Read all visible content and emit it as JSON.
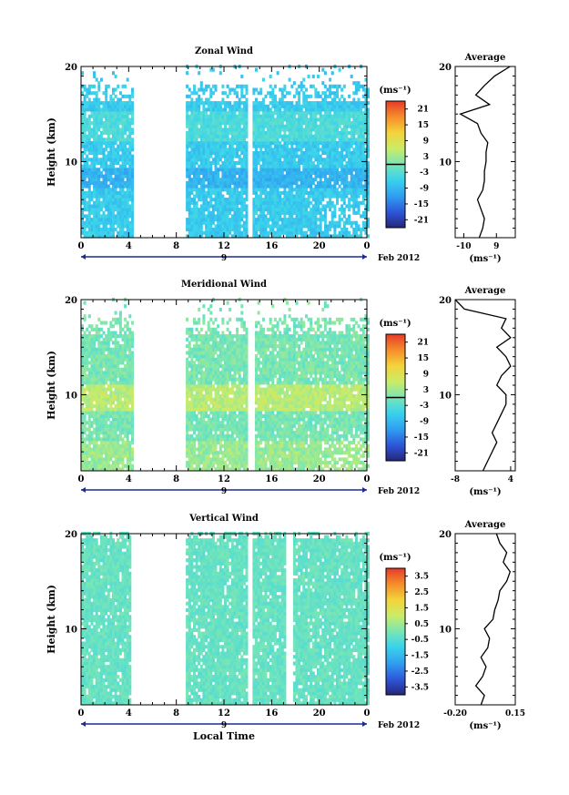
{
  "chart_data": [
    {
      "type": "heatmap",
      "title": "Zonal Wind",
      "ylabel": "Height (km)",
      "y_ticks": [
        "10",
        "20"
      ],
      "ylim": [
        2,
        20
      ],
      "x_ticks": [
        "0",
        "4",
        "8",
        "12",
        "16",
        "20",
        "0"
      ],
      "xlim": [
        0,
        24
      ],
      "date_label": "9",
      "month_label": "Feb 2012",
      "colorbar": {
        "unit_label": "(ms⁻¹)",
        "ticks": [
          "21",
          "15",
          "9",
          "3",
          "-3",
          "-9",
          "-15",
          "-21"
        ],
        "range": [
          -24,
          24
        ],
        "zero_line": true
      },
      "data_gaps_hours": [
        [
          4.5,
          8.8
        ],
        [
          14.0,
          14.3
        ]
      ],
      "average_profile": {
        "title": "Average",
        "x_ticks": [
          "-10",
          "9"
        ],
        "x_tick_values": [
          -10,
          9
        ],
        "xlim": [
          -15,
          20
        ],
        "xlabel": "(ms⁻¹)",
        "y_ticks": [
          "10",
          "20"
        ],
        "height_km": [
          2,
          3,
          4,
          5,
          6,
          7,
          8,
          9,
          10,
          11,
          12,
          13,
          14,
          15,
          16,
          17,
          18,
          19,
          20
        ],
        "values": [
          -1,
          1,
          2,
          0,
          -2,
          1,
          2,
          2,
          3,
          3,
          4,
          0,
          -2,
          -12,
          5,
          -3,
          2,
          8,
          17
        ]
      }
    },
    {
      "type": "heatmap",
      "title": "Meridional Wind",
      "ylabel": "Height (km)",
      "y_ticks": [
        "10",
        "20"
      ],
      "ylim": [
        2,
        20
      ],
      "x_ticks": [
        "0",
        "4",
        "8",
        "12",
        "16",
        "20",
        "0"
      ],
      "xlim": [
        0,
        24
      ],
      "date_label": "9",
      "month_label": "Feb 2012",
      "colorbar": {
        "unit_label": "(ms⁻¹)",
        "ticks": [
          "21",
          "15",
          "9",
          "3",
          "-3",
          "-9",
          "-15",
          "-21"
        ],
        "range": [
          -24,
          24
        ],
        "zero_line": true
      },
      "data_gaps_hours": [
        [
          4.4,
          8.8
        ],
        [
          14.0,
          14.5
        ]
      ],
      "average_profile": {
        "title": "Average",
        "x_ticks": [
          "-8",
          "4"
        ],
        "x_tick_values": [
          -8,
          4
        ],
        "xlim": [
          -8,
          5
        ],
        "xlabel": "(ms⁻¹)",
        "y_ticks": [
          "10",
          "20"
        ],
        "height_km": [
          2,
          3,
          4,
          5,
          6,
          7,
          8,
          9,
          10,
          11,
          12,
          13,
          14,
          15,
          16,
          17,
          18,
          19,
          20
        ],
        "values": [
          -2,
          -1,
          0,
          1,
          0,
          1,
          2,
          3,
          3,
          1,
          2,
          4,
          3,
          1,
          4,
          2,
          3,
          -6,
          -8
        ]
      }
    },
    {
      "type": "heatmap",
      "title": "Vertical Wind",
      "ylabel": "Height (km)",
      "y_ticks": [
        "10",
        "20"
      ],
      "ylim": [
        2,
        20
      ],
      "x_ticks": [
        "0",
        "4",
        "8",
        "12",
        "16",
        "20",
        "0"
      ],
      "xlim": [
        0,
        24
      ],
      "date_label": "9",
      "month_label": "Feb 2012",
      "xlabel": "Local Time",
      "colorbar": {
        "unit_label": "(ms⁻¹)",
        "ticks": [
          "3.5",
          "2.5",
          "1.5",
          "0.5",
          "-0.5",
          "-1.5",
          "-2.5",
          "-3.5"
        ],
        "range": [
          -4,
          4
        ],
        "zero_line": false
      },
      "data_gaps_hours": [
        [
          4.3,
          8.8
        ],
        [
          14.0,
          14.3
        ],
        [
          17.2,
          17.8
        ]
      ],
      "average_profile": {
        "title": "Average",
        "x_ticks": [
          "-0.20",
          "0.15"
        ],
        "x_tick_values": [
          -0.2,
          0.15
        ],
        "xlim": [
          -0.2,
          0.15
        ],
        "xlabel": "(ms⁻¹)",
        "y_ticks": [
          "10",
          "20"
        ],
        "height_km": [
          2,
          3,
          4,
          5,
          6,
          7,
          8,
          9,
          10,
          11,
          12,
          13,
          14,
          15,
          16,
          17,
          18,
          19,
          20
        ],
        "values": [
          -0.05,
          -0.03,
          -0.08,
          -0.04,
          -0.02,
          -0.05,
          -0.01,
          0.0,
          -0.03,
          0.02,
          0.03,
          0.05,
          0.06,
          0.1,
          0.12,
          0.08,
          0.1,
          0.06,
          0.04
        ]
      }
    }
  ]
}
